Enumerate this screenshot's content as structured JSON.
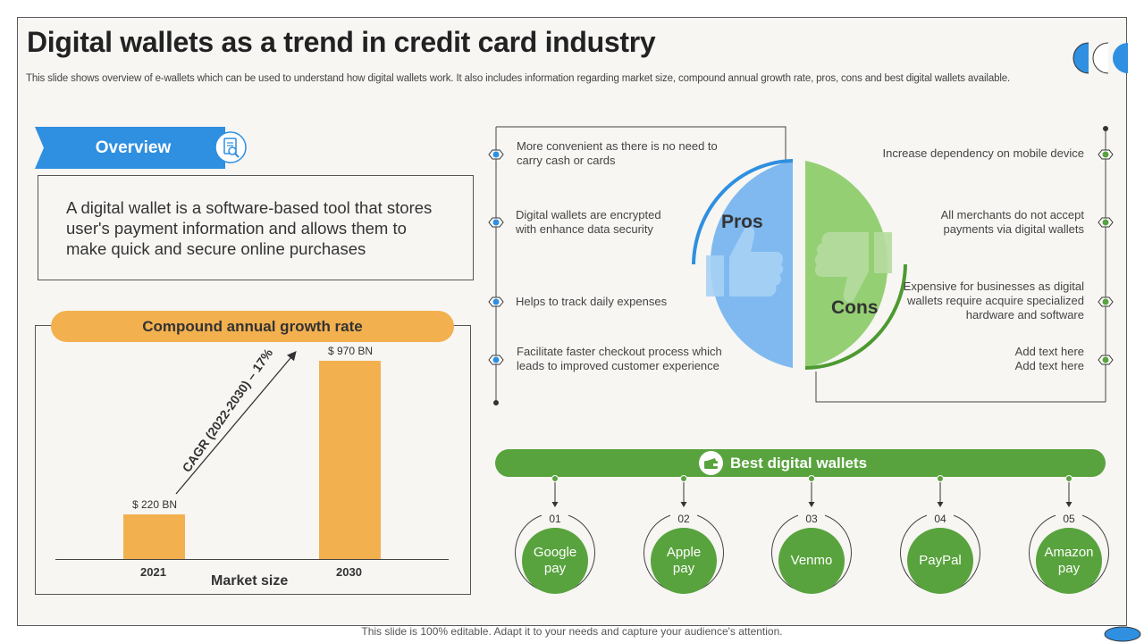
{
  "title": "Digital wallets as a trend in credit card industry",
  "subtitle": "This slide shows overview of e-wallets which can be used to understand how digital wallets work. It also includes information regarding market size, compound annual growth rate, pros, cons and best digital wallets available.",
  "overview": {
    "label": "Overview",
    "text": "A digital wallet is a software-based tool that stores user's payment information and allows them to make quick and secure online purchases"
  },
  "cagr": {
    "heading": "Compound annual growth rate",
    "arrow_label": "CAGR (2022-2030) – 17%",
    "xlabel": "Market size",
    "bars": [
      {
        "year": "2021",
        "label": "$ 220 BN",
        "value": 220
      },
      {
        "year": "2030",
        "label": "$ 970 BN",
        "value": 970
      }
    ]
  },
  "chart_data": {
    "type": "bar",
    "categories": [
      "2021",
      "2030"
    ],
    "values": [
      220,
      970
    ],
    "title": "Compound annual growth rate",
    "xlabel": "Market size",
    "ylabel": ""
  },
  "pros": {
    "label": "Pros",
    "items": [
      "More convenient  as there is no need to carry cash or cards",
      "Digital wallets are encrypted with enhance data security",
      "Helps to track daily expenses",
      "Facilitate faster checkout process which leads to improved  customer experience"
    ]
  },
  "cons": {
    "label": "Cons",
    "items": [
      "Increase dependency on mobile device",
      "All merchants do not accept payments via digital wallets",
      "Expensive for businesses as digital wallets require acquire specialized hardware  and software",
      "Add text here Add text here"
    ]
  },
  "wallets": {
    "heading": "Best digital wallets",
    "items": [
      {
        "num": "01",
        "name": "Google pay"
      },
      {
        "num": "02",
        "name": "Apple pay"
      },
      {
        "num": "03",
        "name": "Venmo"
      },
      {
        "num": "04",
        "name": "PayPal"
      },
      {
        "num": "05",
        "name": "Amazon pay"
      }
    ]
  },
  "footer": "This slide is 100% editable. Adapt it to your needs and capture your audience's attention.",
  "colors": {
    "blue": "#2f8fe0",
    "light_blue": "#7fb9f0",
    "green": "#58a33d",
    "light_green": "#95cf74",
    "orange": "#f3b04f"
  }
}
